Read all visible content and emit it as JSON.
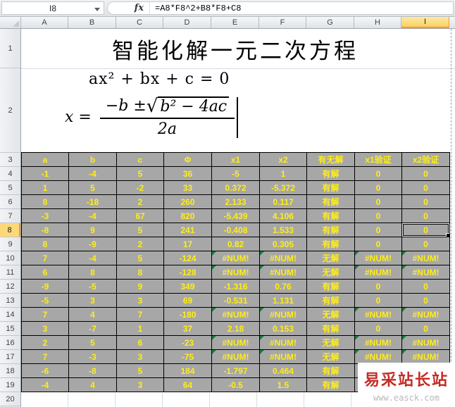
{
  "formula_bar": {
    "name_box_value": "I8",
    "fx_label": "fx",
    "formula": "=A8*F8^2+B8*F8+C8"
  },
  "columns": [
    "A",
    "B",
    "C",
    "D",
    "E",
    "F",
    "G",
    "H",
    "I"
  ],
  "row_numbers": [
    1,
    2,
    3,
    4,
    5,
    6,
    7,
    8,
    9,
    10,
    11,
    12,
    13,
    14,
    15,
    16,
    17,
    18,
    19,
    20
  ],
  "selected": {
    "cell": "I8",
    "column": "I",
    "row": 8
  },
  "sheet": {
    "title": "智能化解一元二次方程",
    "equation_line": "ax² + bx + c = 0",
    "solution": {
      "lead": "x =",
      "numerator_prefix": "−b ± ",
      "sqrt_sign": "√",
      "radicand": "b² − 4ac",
      "denominator": "2a"
    }
  },
  "table": {
    "headers": [
      "a",
      "b",
      "c",
      "Φ",
      "x1",
      "x2",
      "有无解",
      "x1验证",
      "x2验证"
    ],
    "rows": [
      {
        "row": 4,
        "cells": [
          "-1",
          "-4",
          "5",
          "36",
          "-5",
          "1",
          "有解",
          "0",
          "0"
        ]
      },
      {
        "row": 5,
        "cells": [
          "1",
          "5",
          "-2",
          "33",
          "0.372",
          "-5.372",
          "有解",
          "0",
          "0"
        ]
      },
      {
        "row": 6,
        "cells": [
          "8",
          "-18",
          "2",
          "260",
          "2.133",
          "0.117",
          "有解",
          "0",
          "0"
        ]
      },
      {
        "row": 7,
        "cells": [
          "-3",
          "-4",
          "67",
          "820",
          "-5.439",
          "4.106",
          "有解",
          "0",
          "0"
        ]
      },
      {
        "row": 8,
        "cells": [
          "-8",
          "9",
          "5",
          "241",
          "-0.408",
          "1.533",
          "有解",
          "0",
          "0"
        ]
      },
      {
        "row": 9,
        "cells": [
          "8",
          "-9",
          "2",
          "17",
          "0.82",
          "0.305",
          "有解",
          "0",
          "0"
        ]
      },
      {
        "row": 10,
        "cells": [
          "7",
          "-4",
          "5",
          "-124",
          "#NUM!",
          "#NUM!",
          "无解",
          "#NUM!",
          "#NUM!"
        ]
      },
      {
        "row": 11,
        "cells": [
          "6",
          "8",
          "8",
          "-128",
          "#NUM!",
          "#NUM!",
          "无解",
          "#NUM!",
          "#NUM!"
        ]
      },
      {
        "row": 12,
        "cells": [
          "-9",
          "-5",
          "9",
          "349",
          "-1.316",
          "0.76",
          "有解",
          "0",
          "0"
        ]
      },
      {
        "row": 13,
        "cells": [
          "-5",
          "3",
          "3",
          "69",
          "-0.531",
          "1.131",
          "有解",
          "0",
          "0"
        ]
      },
      {
        "row": 14,
        "cells": [
          "7",
          "4",
          "7",
          "-180",
          "#NUM!",
          "#NUM!",
          "无解",
          "#NUM!",
          "#NUM!"
        ]
      },
      {
        "row": 15,
        "cells": [
          "3",
          "-7",
          "1",
          "37",
          "2.18",
          "0.153",
          "有解",
          "0",
          "0"
        ]
      },
      {
        "row": 16,
        "cells": [
          "2",
          "5",
          "6",
          "-23",
          "#NUM!",
          "#NUM!",
          "无解",
          "#NUM!",
          "#NUM!"
        ]
      },
      {
        "row": 17,
        "cells": [
          "7",
          "-3",
          "3",
          "-75",
          "#NUM!",
          "#NUM!",
          "无解",
          "#NUM!",
          "#NUM!"
        ]
      },
      {
        "row": 18,
        "cells": [
          "-6",
          "-8",
          "5",
          "184",
          "-1.797",
          "0.464",
          "有解",
          "",
          ""
        ]
      },
      {
        "row": 19,
        "cells": [
          "-4",
          "4",
          "3",
          "64",
          "-0.5",
          "1.5",
          "有解",
          "",
          ""
        ]
      }
    ]
  },
  "watermark": {
    "text": "易采站长站",
    "url": "www.easck.com"
  },
  "colors": {
    "cell-bg": "#a7a7a7",
    "cell-text": "#ffed1a",
    "header-sel-bg": "#fcd878",
    "header-sel-border": "#f09a36",
    "grid-line": "#d6dde6",
    "error-indicator": "#1e7a41",
    "watermark-red": "#c32b24",
    "header-text": "#3f4347"
  }
}
